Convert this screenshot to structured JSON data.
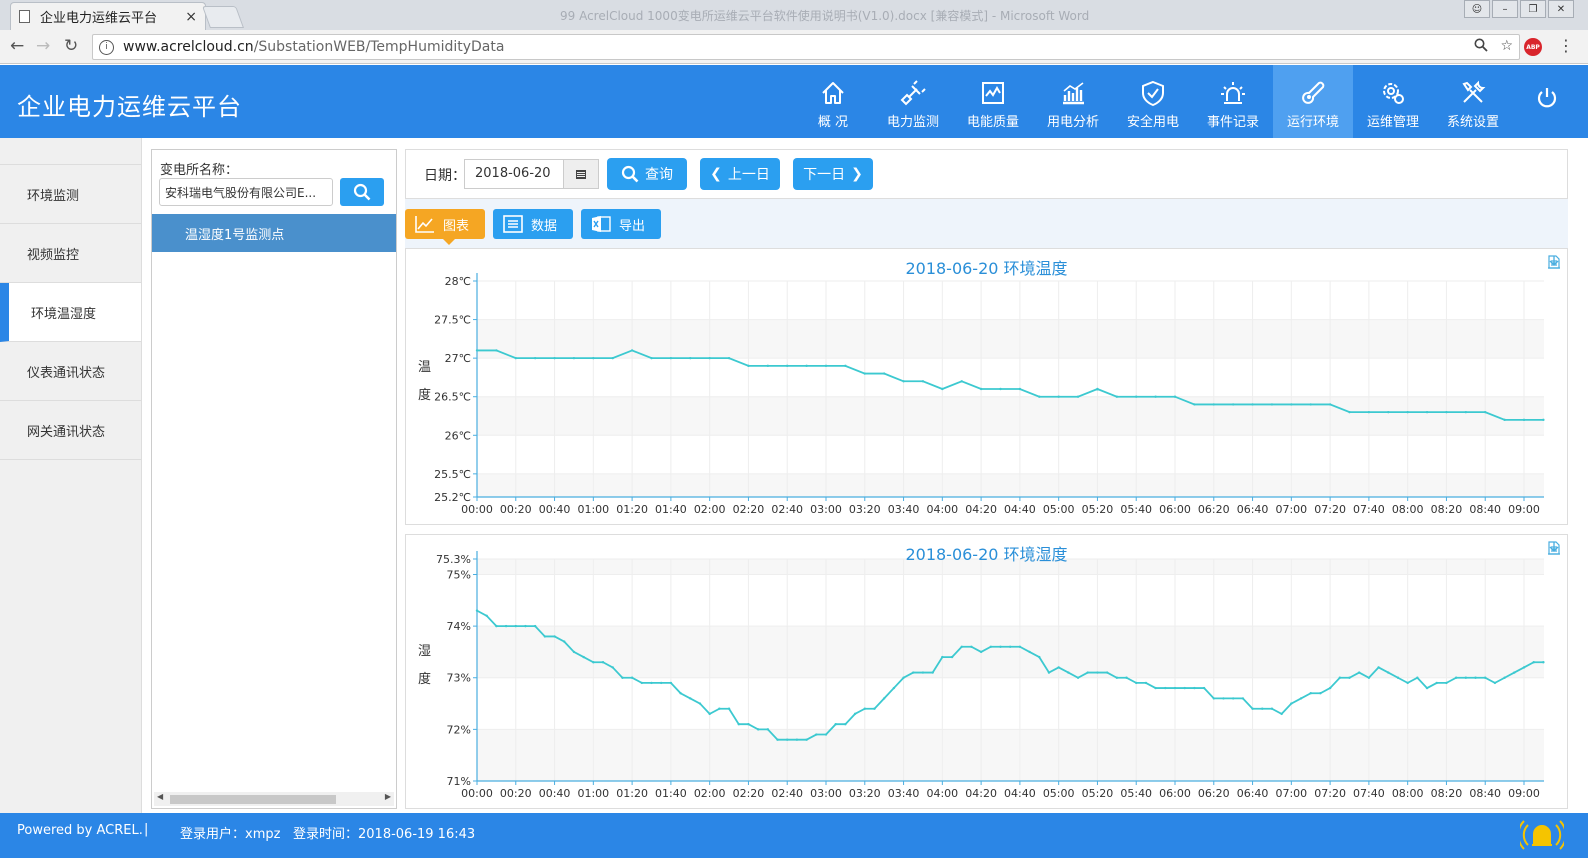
{
  "browser": {
    "tab_title": "企业电力运维云平台",
    "tab_close": "×",
    "faded_title": "99 AcrelCloud 1000变电所运维云平台软件使用说明书(V1.0).docx [兼容模式] - Microsoft Word",
    "url_host": "www.acrelcloud.cn",
    "url_path": "/SubstationWEB/TempHumidityData",
    "abp": "ABP"
  },
  "header": {
    "brand": "企业电力运维云平台",
    "nav": [
      {
        "label": "概 况",
        "icon": "home-icon"
      },
      {
        "label": "电力监测",
        "icon": "plug-icon"
      },
      {
        "label": "电能质量",
        "icon": "monitor-chart-icon"
      },
      {
        "label": "用电分析",
        "icon": "bar-chart-icon"
      },
      {
        "label": "安全用电",
        "icon": "shield-check-icon"
      },
      {
        "label": "事件记录",
        "icon": "alarm-light-icon"
      },
      {
        "label": "运行环境",
        "icon": "thermometer-icon"
      },
      {
        "label": "运维管理",
        "icon": "gear-user-icon"
      },
      {
        "label": "系统设置",
        "icon": "tools-icon"
      }
    ],
    "active_nav": 6
  },
  "sidebar": {
    "items": [
      "环境监测",
      "视频监控",
      "环境温湿度",
      "仪表通讯状态",
      "网关通讯状态"
    ],
    "active": 2
  },
  "tree": {
    "station_label": "变电所名称：",
    "station_value": "安科瑞电气股份有限公司E...",
    "node": "温湿度1号监测点"
  },
  "toolbar": {
    "date_label": "日期：",
    "date_value": "2018-06-20",
    "query": "查询",
    "prev": "上一日",
    "next": "下一日"
  },
  "view_tabs": {
    "chart": "图表",
    "data": "数据",
    "export": "导出"
  },
  "chart_data": [
    {
      "type": "line",
      "title": "2018-06-20  环境温度",
      "ylabel": "温度",
      "unit": "℃",
      "ylim": [
        25.2,
        28
      ],
      "yticks": [
        "25.2℃",
        "25.5℃",
        "26℃",
        "26.5℃",
        "27℃",
        "27.5℃",
        "28℃"
      ],
      "ytick_values": [
        25.2,
        25.5,
        26,
        26.5,
        27,
        27.5,
        28
      ],
      "x_labels": [
        "00:00",
        "00:20",
        "00:40",
        "01:00",
        "01:20",
        "01:40",
        "02:00",
        "02:20",
        "02:40",
        "03:00",
        "03:20",
        "03:40",
        "04:00",
        "04:20",
        "04:40",
        "05:00",
        "05:20",
        "05:40",
        "06:00",
        "06:20",
        "06:40",
        "07:00",
        "07:20",
        "07:40",
        "08:00",
        "08:20",
        "08:40",
        "09:00"
      ],
      "x_minutes": [
        0,
        10,
        20,
        30,
        40,
        50,
        60,
        70,
        80,
        90,
        100,
        110,
        120,
        130,
        140,
        150,
        160,
        170,
        180,
        190,
        200,
        210,
        220,
        230,
        240,
        250,
        260,
        270,
        280,
        290,
        300,
        310,
        320,
        330,
        340,
        350,
        360,
        370,
        380,
        390,
        400,
        410,
        420,
        430,
        440,
        450,
        460,
        470,
        480,
        490,
        500,
        510,
        520,
        530,
        540,
        550
      ],
      "values": [
        27.1,
        27.1,
        27.0,
        27.0,
        27.0,
        27.0,
        27.0,
        27.0,
        27.1,
        27.0,
        27.0,
        27.0,
        27.0,
        27.0,
        26.9,
        26.9,
        26.9,
        26.9,
        26.9,
        26.9,
        26.8,
        26.8,
        26.7,
        26.7,
        26.6,
        26.7,
        26.6,
        26.6,
        26.6,
        26.5,
        26.5,
        26.5,
        26.6,
        26.5,
        26.5,
        26.5,
        26.5,
        26.4,
        26.4,
        26.4,
        26.4,
        26.4,
        26.4,
        26.4,
        26.4,
        26.3,
        26.3,
        26.3,
        26.3,
        26.3,
        26.3,
        26.3,
        26.3,
        26.2,
        26.2,
        26.2
      ]
    },
    {
      "type": "line",
      "title": "2018-06-20  环境湿度",
      "ylabel": "湿度",
      "unit": "%",
      "ylim": [
        71,
        75.3
      ],
      "yticks": [
        "71%",
        "72%",
        "73%",
        "74%",
        "75%",
        "75.3%"
      ],
      "ytick_values": [
        71,
        72,
        73,
        74,
        75,
        75.3
      ],
      "x_labels": [
        "00:00",
        "00:20",
        "00:40",
        "01:00",
        "01:20",
        "01:40",
        "02:00",
        "02:20",
        "02:40",
        "03:00",
        "03:20",
        "03:40",
        "04:00",
        "04:20",
        "04:40",
        "05:00",
        "05:20",
        "05:40",
        "06:00",
        "06:20",
        "06:40",
        "07:00",
        "07:20",
        "07:40",
        "08:00",
        "08:20",
        "08:40",
        "09:00"
      ],
      "x_minutes": [
        0,
        5,
        10,
        15,
        20,
        25,
        30,
        35,
        40,
        45,
        50,
        55,
        60,
        65,
        70,
        75,
        80,
        85,
        90,
        95,
        100,
        105,
        110,
        115,
        120,
        125,
        130,
        135,
        140,
        145,
        150,
        155,
        160,
        165,
        170,
        175,
        180,
        185,
        190,
        195,
        200,
        205,
        210,
        215,
        220,
        225,
        230,
        235,
        240,
        245,
        250,
        255,
        260,
        265,
        270,
        275,
        280,
        285,
        290,
        295,
        300,
        305,
        310,
        315,
        320,
        325,
        330,
        335,
        340,
        345,
        350,
        355,
        360,
        365,
        370,
        375,
        380,
        385,
        390,
        395,
        400,
        405,
        410,
        415,
        420,
        425,
        430,
        435,
        440,
        445,
        450,
        455,
        460,
        465,
        470,
        475,
        480,
        485,
        490,
        495,
        500,
        505,
        510,
        515,
        520,
        525,
        530,
        535,
        540,
        545,
        550
      ],
      "values": [
        74.3,
        74.2,
        74.0,
        74.0,
        74.0,
        74.0,
        74.0,
        73.8,
        73.8,
        73.7,
        73.5,
        73.4,
        73.3,
        73.3,
        73.2,
        73.0,
        73.0,
        72.9,
        72.9,
        72.9,
        72.9,
        72.7,
        72.6,
        72.5,
        72.3,
        72.4,
        72.4,
        72.1,
        72.1,
        72.0,
        72.0,
        71.8,
        71.8,
        71.8,
        71.8,
        71.9,
        71.9,
        72.1,
        72.1,
        72.3,
        72.4,
        72.4,
        72.6,
        72.8,
        73.0,
        73.1,
        73.1,
        73.1,
        73.4,
        73.4,
        73.6,
        73.6,
        73.5,
        73.6,
        73.6,
        73.6,
        73.6,
        73.5,
        73.4,
        73.1,
        73.2,
        73.1,
        73.0,
        73.1,
        73.1,
        73.1,
        73.0,
        73.0,
        72.9,
        72.9,
        72.8,
        72.8,
        72.8,
        72.8,
        72.8,
        72.8,
        72.6,
        72.6,
        72.6,
        72.6,
        72.4,
        72.4,
        72.4,
        72.3,
        72.5,
        72.6,
        72.7,
        72.7,
        72.8,
        73.0,
        73.0,
        73.1,
        73.0,
        73.2,
        73.1,
        73.0,
        72.9,
        73.0,
        72.8,
        72.9,
        72.9,
        73.0,
        73.0,
        73.0,
        73.0,
        72.9,
        73.0,
        73.1,
        73.2,
        73.3,
        73.3
      ]
    }
  ],
  "footer": {
    "powered": "Powered by ACREL.",
    "sep": "|",
    "user": "登录用户：xmpz",
    "login_time": "登录时间：2018-06-19 16:43"
  }
}
